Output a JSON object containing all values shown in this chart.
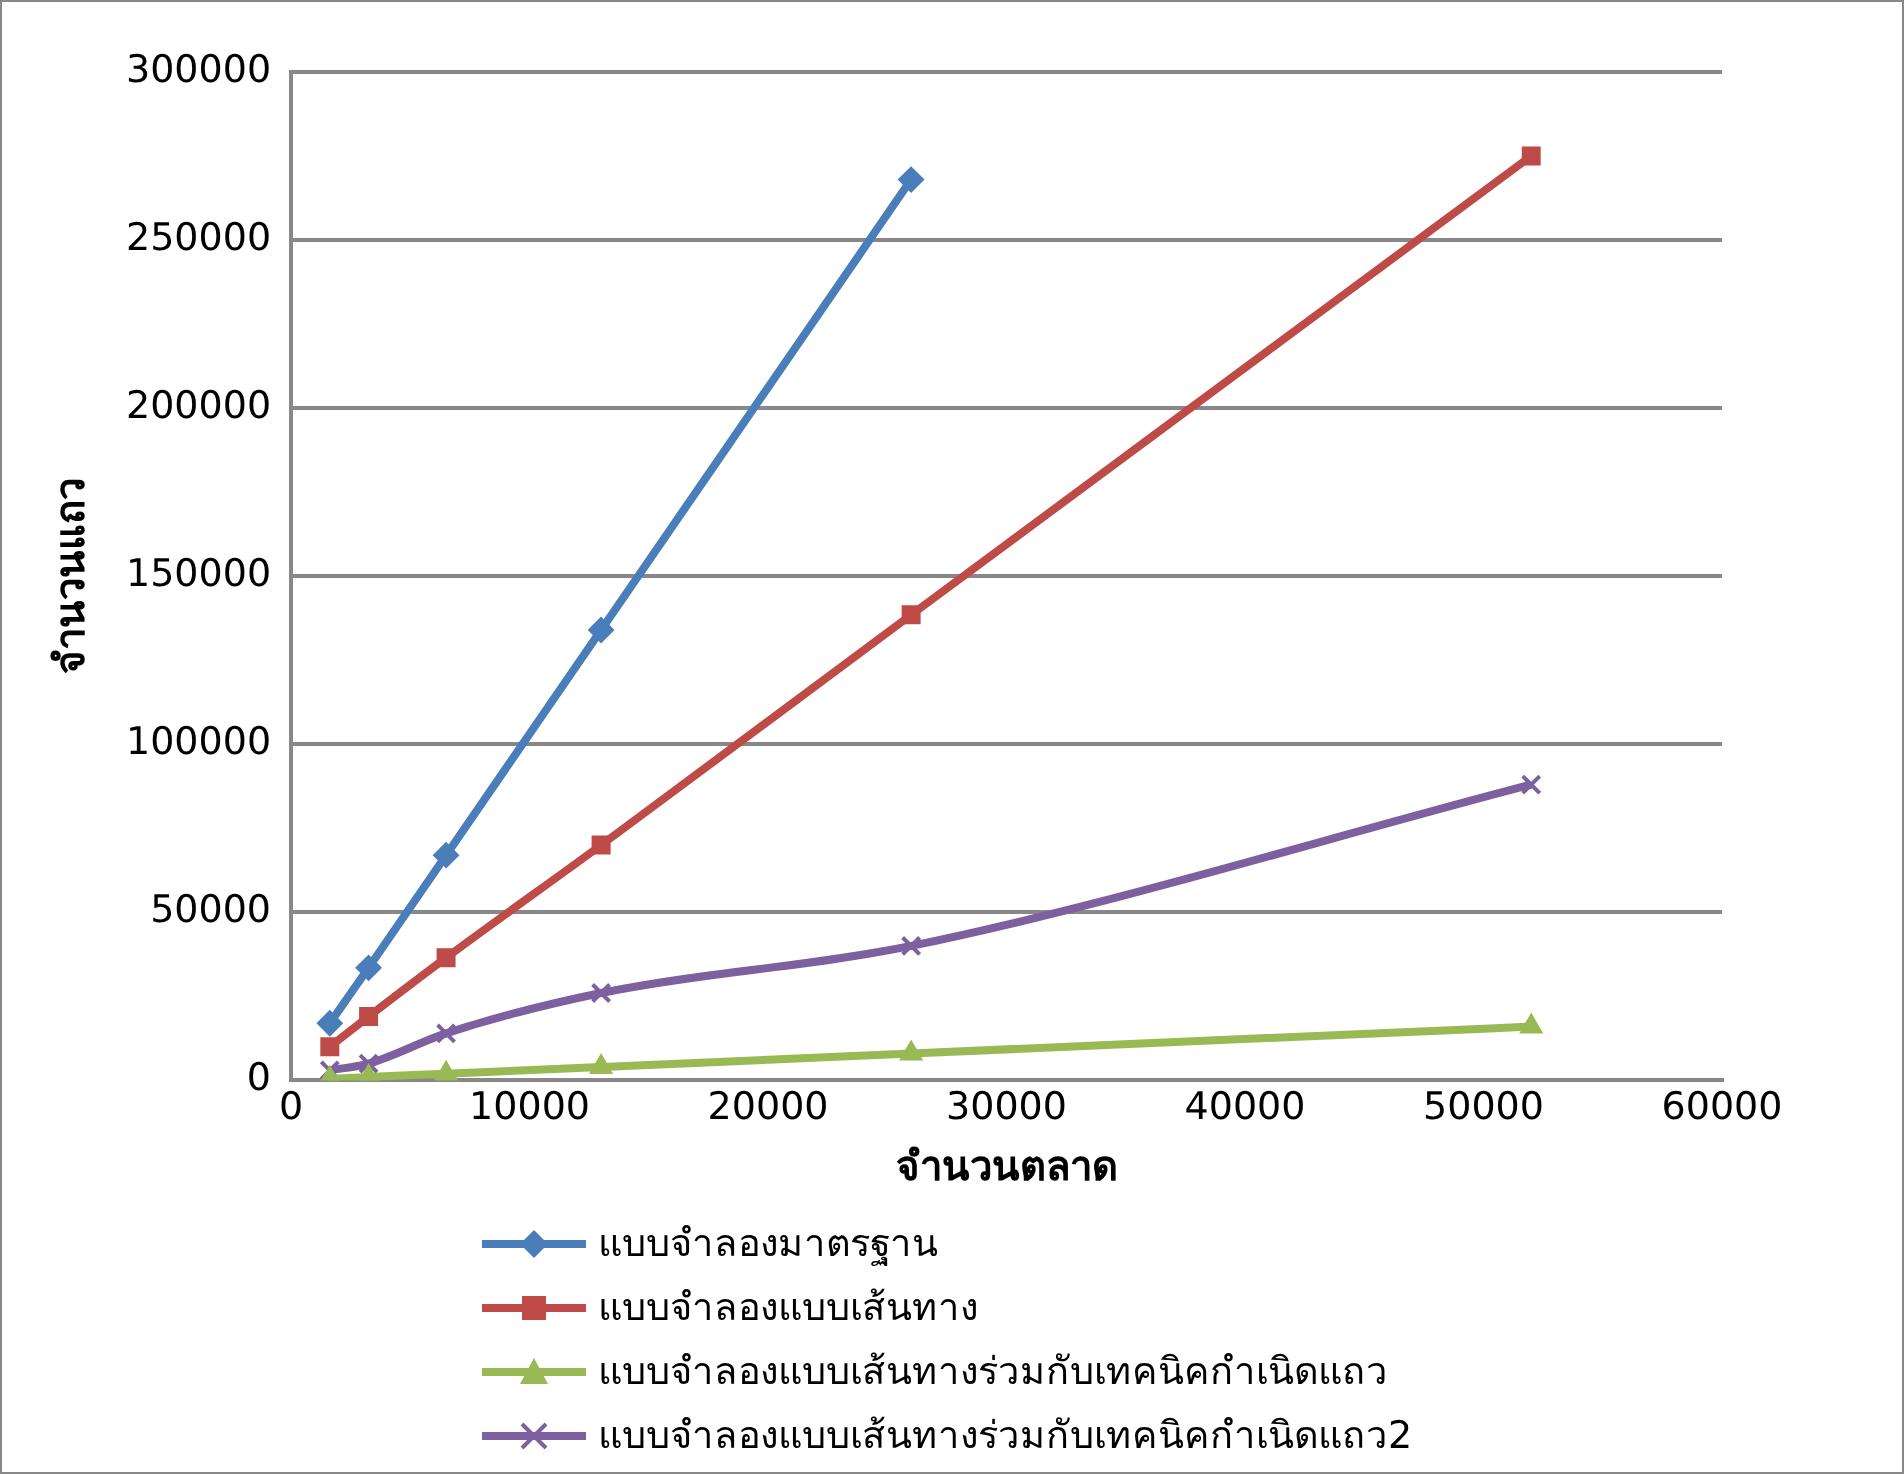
{
  "chart_data": {
    "type": "line",
    "xlabel": "จำนวนตลาด",
    "ylabel": "จำนวนแถว",
    "x": [
      1625,
      3250,
      6500,
      13000,
      26000,
      52000
    ],
    "xlim": [
      0,
      60000
    ],
    "xticks": [
      0,
      10000,
      20000,
      30000,
      40000,
      50000,
      60000
    ],
    "ylim": [
      0,
      300000
    ],
    "yticks": [
      0,
      50000,
      100000,
      150000,
      200000,
      250000,
      300000
    ],
    "grid": "y",
    "legend": "bottom",
    "series": [
      {
        "name": "แบบจำลองมาตรฐาน",
        "color": "#4a7ebb",
        "marker": "diamond",
        "x": [
          1625,
          3250,
          6500,
          13000,
          26000
        ],
        "values": [
          17000,
          33500,
          67000,
          134000,
          268000
        ]
      },
      {
        "name": "แบบจำลองแบบเส้นทาง",
        "color": "#be4b48",
        "marker": "square",
        "values": [
          10000,
          19000,
          36500,
          70000,
          138500,
          275000
        ]
      },
      {
        "name": "แบบจำลองแบบเส้นทางร่วมกับเทคนิคกำเนิดแถว",
        "color": "#98b954",
        "marker": "triangle",
        "values": [
          500,
          1000,
          2000,
          4000,
          8000,
          16000
        ]
      },
      {
        "name": "แบบจำลองแบบเส้นทางร่วมกับเทคนิคกำเนิดแถว2",
        "color": "#7d60a0",
        "marker": "cross",
        "values": [
          3000,
          5000,
          14000,
          26000,
          40000,
          88000
        ]
      }
    ]
  }
}
